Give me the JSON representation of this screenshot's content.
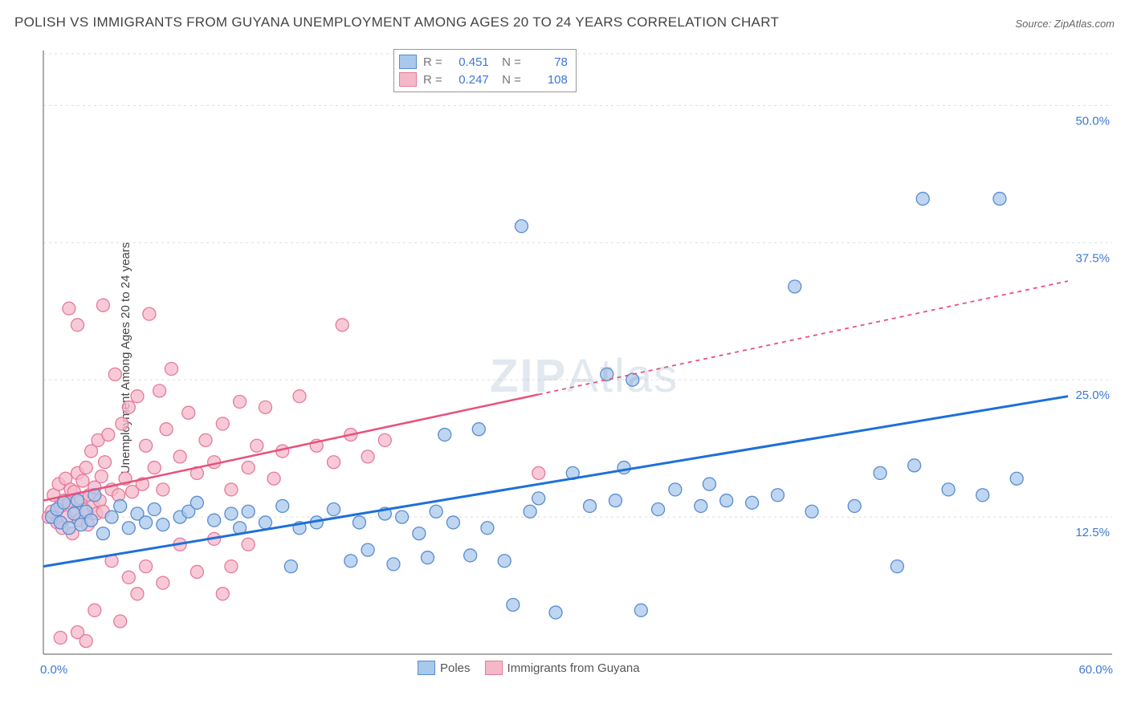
{
  "title": "POLISH VS IMMIGRANTS FROM GUYANA UNEMPLOYMENT AMONG AGES 20 TO 24 YEARS CORRELATION CHART",
  "source": "Source: ZipAtlas.com",
  "ylabel": "Unemployment Among Ages 20 to 24 years",
  "watermark_bold": "ZIP",
  "watermark_light": "Atlas",
  "chart": {
    "type": "scatter",
    "background_color": "#ffffff",
    "grid_color": "#dddddd",
    "xlim": [
      0,
      60
    ],
    "ylim": [
      0,
      55
    ],
    "xtick_labels": [
      "0.0%",
      "60.0%"
    ],
    "ytick_values": [
      12.5,
      25.0,
      37.5,
      50.0
    ],
    "ytick_labels": [
      "12.5%",
      "25.0%",
      "37.5%",
      "50.0%"
    ],
    "axis_label_color": "#3d78d6",
    "axis_label_fontsize": 15,
    "series": [
      {
        "name": "Poles",
        "marker_fill": "#a8c8ec",
        "marker_stroke": "#5a8bce",
        "line_color": "#1e6fd9",
        "marker_radius": 8,
        "line_width": 3,
        "r_value": "0.451",
        "n_value": "78",
        "trend_start": [
          0,
          8
        ],
        "trend_end": [
          60,
          23.5
        ],
        "trend_solid_until": 60,
        "points": [
          [
            0.5,
            12.5
          ],
          [
            0.8,
            13.2
          ],
          [
            1.0,
            12.0
          ],
          [
            1.2,
            13.8
          ],
          [
            1.5,
            11.5
          ],
          [
            1.8,
            12.8
          ],
          [
            2.0,
            14.0
          ],
          [
            2.2,
            11.8
          ],
          [
            2.5,
            13.0
          ],
          [
            2.8,
            12.2
          ],
          [
            3.0,
            14.5
          ],
          [
            3.5,
            11.0
          ],
          [
            4.0,
            12.5
          ],
          [
            4.5,
            13.5
          ],
          [
            5.0,
            11.5
          ],
          [
            5.5,
            12.8
          ],
          [
            6.0,
            12.0
          ],
          [
            6.5,
            13.2
          ],
          [
            7.0,
            11.8
          ],
          [
            8.0,
            12.5
          ],
          [
            8.5,
            13.0
          ],
          [
            9.0,
            13.8
          ],
          [
            10.0,
            12.2
          ],
          [
            11.0,
            12.8
          ],
          [
            11.5,
            11.5
          ],
          [
            12.0,
            13.0
          ],
          [
            13.0,
            12.0
          ],
          [
            14.0,
            13.5
          ],
          [
            14.5,
            8.0
          ],
          [
            15.0,
            11.5
          ],
          [
            16.0,
            12.0
          ],
          [
            17.0,
            13.2
          ],
          [
            18.0,
            8.5
          ],
          [
            18.5,
            12.0
          ],
          [
            19.0,
            9.5
          ],
          [
            20.0,
            12.8
          ],
          [
            20.5,
            8.2
          ],
          [
            21.0,
            12.5
          ],
          [
            22.0,
            11.0
          ],
          [
            22.5,
            8.8
          ],
          [
            23.0,
            13.0
          ],
          [
            23.5,
            20.0
          ],
          [
            24.0,
            12.0
          ],
          [
            25.0,
            9.0
          ],
          [
            25.5,
            20.5
          ],
          [
            26.0,
            11.5
          ],
          [
            27.0,
            8.5
          ],
          [
            27.5,
            4.5
          ],
          [
            28.0,
            39.0
          ],
          [
            28.5,
            13.0
          ],
          [
            29.0,
            14.2
          ],
          [
            30.0,
            3.8
          ],
          [
            31.0,
            16.5
          ],
          [
            32.0,
            13.5
          ],
          [
            33.0,
            25.5
          ],
          [
            33.5,
            14.0
          ],
          [
            34.0,
            17.0
          ],
          [
            34.5,
            25.0
          ],
          [
            35.0,
            4.0
          ],
          [
            36.0,
            13.2
          ],
          [
            37.0,
            15.0
          ],
          [
            38.5,
            13.5
          ],
          [
            39.0,
            15.5
          ],
          [
            40.0,
            14.0
          ],
          [
            41.5,
            13.8
          ],
          [
            43.0,
            14.5
          ],
          [
            44.0,
            33.5
          ],
          [
            45.0,
            13.0
          ],
          [
            47.5,
            13.5
          ],
          [
            49.0,
            16.5
          ],
          [
            50.0,
            8.0
          ],
          [
            51.0,
            17.2
          ],
          [
            51.5,
            41.5
          ],
          [
            53.0,
            15.0
          ],
          [
            55.0,
            14.5
          ],
          [
            56.0,
            41.5
          ],
          [
            57.0,
            16.0
          ]
        ]
      },
      {
        "name": "Immigrants from Guyana",
        "marker_fill": "#f5b8c9",
        "marker_stroke": "#e47a9a",
        "line_color": "#e8517a",
        "marker_radius": 8,
        "line_width": 2.5,
        "r_value": "0.247",
        "n_value": "108",
        "trend_start": [
          0,
          14
        ],
        "trend_end": [
          60,
          34
        ],
        "trend_solid_until": 29,
        "points": [
          [
            0.3,
            12.5
          ],
          [
            0.5,
            13.0
          ],
          [
            0.6,
            14.5
          ],
          [
            0.8,
            12.0
          ],
          [
            0.9,
            15.5
          ],
          [
            1.0,
            13.5
          ],
          [
            1.1,
            11.5
          ],
          [
            1.2,
            14.0
          ],
          [
            1.3,
            16.0
          ],
          [
            1.4,
            12.5
          ],
          [
            1.5,
            13.8
          ],
          [
            1.6,
            15.0
          ],
          [
            1.7,
            11.0
          ],
          [
            1.8,
            14.8
          ],
          [
            1.9,
            13.0
          ],
          [
            2.0,
            16.5
          ],
          [
            2.1,
            12.2
          ],
          [
            2.2,
            14.2
          ],
          [
            2.3,
            15.8
          ],
          [
            2.4,
            13.2
          ],
          [
            2.5,
            17.0
          ],
          [
            2.6,
            11.8
          ],
          [
            2.7,
            14.5
          ],
          [
            2.8,
            18.5
          ],
          [
            2.9,
            13.5
          ],
          [
            3.0,
            15.2
          ],
          [
            3.1,
            12.8
          ],
          [
            3.2,
            19.5
          ],
          [
            3.3,
            14.0
          ],
          [
            3.4,
            16.2
          ],
          [
            3.5,
            13.0
          ],
          [
            3.6,
            17.5
          ],
          [
            3.8,
            20.0
          ],
          [
            4.0,
            15.0
          ],
          [
            4.2,
            25.5
          ],
          [
            4.4,
            14.5
          ],
          [
            4.6,
            21.0
          ],
          [
            4.8,
            16.0
          ],
          [
            5.0,
            22.5
          ],
          [
            5.2,
            14.8
          ],
          [
            5.5,
            23.5
          ],
          [
            5.8,
            15.5
          ],
          [
            6.0,
            19.0
          ],
          [
            6.2,
            31.0
          ],
          [
            6.5,
            17.0
          ],
          [
            6.8,
            24.0
          ],
          [
            7.0,
            15.0
          ],
          [
            7.2,
            20.5
          ],
          [
            7.5,
            26.0
          ],
          [
            8.0,
            18.0
          ],
          [
            8.5,
            22.0
          ],
          [
            9.0,
            16.5
          ],
          [
            9.5,
            19.5
          ],
          [
            10.0,
            17.5
          ],
          [
            10.5,
            21.0
          ],
          [
            11.0,
            15.0
          ],
          [
            11.5,
            23.0
          ],
          [
            12.0,
            17.0
          ],
          [
            12.5,
            19.0
          ],
          [
            13.0,
            22.5
          ],
          [
            13.5,
            16.0
          ],
          [
            14.0,
            18.5
          ],
          [
            15.0,
            23.5
          ],
          [
            16.0,
            19.0
          ],
          [
            17.0,
            17.5
          ],
          [
            17.5,
            30.0
          ],
          [
            18.0,
            20.0
          ],
          [
            19.0,
            18.0
          ],
          [
            20.0,
            19.5
          ],
          [
            1.0,
            1.5
          ],
          [
            2.0,
            2.0
          ],
          [
            2.5,
            1.2
          ],
          [
            3.0,
            4.0
          ],
          [
            4.0,
            8.5
          ],
          [
            4.5,
            3.0
          ],
          [
            5.0,
            7.0
          ],
          [
            5.5,
            5.5
          ],
          [
            6.0,
            8.0
          ],
          [
            7.0,
            6.5
          ],
          [
            8.0,
            10.0
          ],
          [
            9.0,
            7.5
          ],
          [
            10.0,
            10.5
          ],
          [
            10.5,
            5.5
          ],
          [
            11.0,
            8.0
          ],
          [
            12.0,
            10.0
          ],
          [
            1.5,
            31.5
          ],
          [
            2.0,
            30.0
          ],
          [
            3.5,
            31.8
          ],
          [
            29.0,
            16.5
          ]
        ]
      }
    ],
    "bottom_legend": {
      "items": [
        "Poles",
        "Immigrants from Guyana"
      ]
    }
  }
}
